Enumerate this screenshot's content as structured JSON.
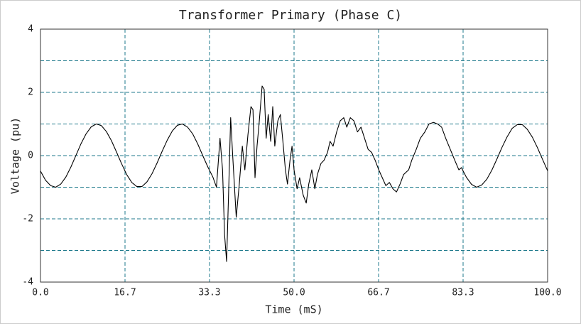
{
  "chart_data": {
    "type": "line",
    "title": "Transformer Primary (Phase C)",
    "x_label": "Time (mS)",
    "y_label": "Voltage (pu)",
    "xlim": [
      0,
      100
    ],
    "ylim": [
      -4,
      4
    ],
    "xticks": [
      {
        "value": 0,
        "label": "0.0"
      },
      {
        "value": 16.667,
        "label": "16.7"
      },
      {
        "value": 33.333,
        "label": "33.3"
      },
      {
        "value": 50,
        "label": "50.0"
      },
      {
        "value": 66.667,
        "label": "66.7"
      },
      {
        "value": 83.333,
        "label": "83.3"
      },
      {
        "value": 100,
        "label": "100.0"
      }
    ],
    "yticks": [
      -4,
      -2,
      0,
      2,
      4
    ],
    "yminor": [
      -3,
      -1,
      1,
      3
    ],
    "grid": true,
    "color": "#000000",
    "x": [
      0,
      1,
      2,
      3,
      4,
      5,
      6,
      7,
      8,
      9,
      10,
      11,
      12,
      13,
      14,
      15,
      16,
      17,
      18,
      19,
      20,
      21,
      22,
      23,
      24,
      25,
      26,
      27,
      28,
      29,
      30,
      31,
      32,
      33,
      34,
      34.7,
      35.4,
      35.9,
      36.3,
      36.7,
      37.1,
      37.5,
      37.9,
      38.6,
      39.2,
      39.8,
      40.3,
      40.9,
      41.5,
      41.9,
      42.3,
      42.7,
      43.1,
      43.7,
      44.1,
      44.5,
      44.9,
      45.4,
      45.8,
      46.2,
      46.8,
      47.3,
      47.8,
      48.3,
      48.7,
      49.2,
      49.6,
      50.0,
      50.6,
      51.1,
      51.8,
      52.4,
      52.9,
      53.5,
      54.1,
      54.6,
      55.3,
      55.9,
      56.6,
      57.1,
      57.7,
      58.4,
      59.1,
      59.8,
      60.4,
      61.1,
      61.8,
      62.5,
      63.2,
      63.9,
      64.6,
      65.3,
      66.0,
      66.7,
      67.4,
      68.1,
      68.8,
      69.5,
      70.2,
      70.9,
      71.6,
      72.6,
      73.2,
      74.1,
      74.9,
      75.8,
      76.6,
      77.5,
      78.3,
      79.1,
      79.9,
      80.8,
      81.7,
      82.5,
      83,
      84,
      85,
      86,
      87,
      88,
      89,
      90,
      91,
      92,
      93,
      94,
      95,
      96,
      97,
      98,
      99,
      100
    ],
    "values": [
      -0.49,
      -0.78,
      -0.95,
      -1.0,
      -0.9,
      -0.68,
      -0.36,
      0.01,
      0.38,
      0.69,
      0.91,
      1.0,
      0.95,
      0.76,
      0.47,
      0.11,
      -0.26,
      -0.6,
      -0.85,
      -0.98,
      -0.98,
      -0.83,
      -0.57,
      -0.23,
      0.14,
      0.49,
      0.78,
      0.96,
      1.0,
      0.9,
      0.69,
      0.37,
      0.0,
      -0.36,
      -0.68,
      -1.0,
      0.55,
      -0.45,
      -2.5,
      -3.35,
      -1.15,
      1.2,
      0,
      -1.95,
      -0.9,
      0.3,
      -0.45,
      0.65,
      1.55,
      1.45,
      -0.7,
      0.3,
      1.0,
      2.2,
      2.1,
      0.55,
      1.3,
      0.45,
      1.55,
      0.3,
      1.1,
      1.3,
      0.45,
      -0.45,
      -0.9,
      -0.15,
      0.3,
      -0.45,
      -1.05,
      -0.7,
      -1.25,
      -1.5,
      -0.9,
      -0.45,
      -1.05,
      -0.6,
      -0.25,
      -0.15,
      0.1,
      0.45,
      0.3,
      0.75,
      1.1,
      1.2,
      0.9,
      1.2,
      1.1,
      0.75,
      0.9,
      0.55,
      0.2,
      0.1,
      -0.15,
      -0.45,
      -0.7,
      -0.95,
      -0.85,
      -1.05,
      -1.15,
      -0.9,
      -0.6,
      -0.45,
      -0.15,
      0.2,
      0.55,
      0.75,
      1.0,
      1.05,
      1.0,
      0.9,
      0.55,
      0.2,
      -0.15,
      -0.45,
      -0.38,
      -0.69,
      -0.91,
      -1.0,
      -0.93,
      -0.75,
      -0.46,
      -0.11,
      0.26,
      0.59,
      0.86,
      0.98,
      0.98,
      0.83,
      0.58,
      0.25,
      -0.12,
      -0.48
    ]
  }
}
